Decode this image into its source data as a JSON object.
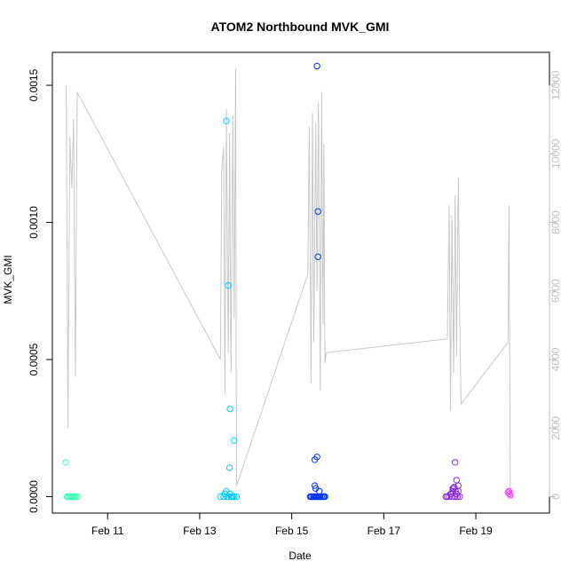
{
  "chart_data": {
    "type": "scatter",
    "title": "ATOM2 Northbound MVK_GMI",
    "xlabel": "Date",
    "ylabel": "MVK_GMI",
    "xlim": [
      9.8,
      20.6
    ],
    "ylim": [
      -6e-05,
      0.00162
    ],
    "y2lim": [
      -480,
      12960
    ],
    "x_ticks": [
      11,
      13,
      15,
      17,
      19
    ],
    "x_tick_labels": [
      "Feb 11",
      "Feb 13",
      "Feb 15",
      "Feb 17",
      "Feb 19"
    ],
    "y_ticks": [
      0,
      0.0005,
      0.001,
      0.0015
    ],
    "y_tick_labels": [
      "0.0000",
      "0.0005",
      "0.0010",
      "0.0015"
    ],
    "y2_ticks": [
      0,
      2000,
      4000,
      6000,
      8000,
      10000,
      12000
    ],
    "y2_tick_labels": [
      "0",
      "2000",
      "4000",
      "6000",
      "8000",
      "10000",
      "12000"
    ],
    "grid": false,
    "legend": "none",
    "point_series": [
      {
        "color": "#33ffb0",
        "x": [
          10.12,
          10.15,
          10.18,
          10.21,
          10.24,
          10.27,
          10.3,
          10.09,
          10.34
        ],
        "y": [
          0,
          0,
          0,
          0,
          0,
          0,
          0,
          0.000125,
          0
        ]
      },
      {
        "color": "#00ccff",
        "x": [
          13.45,
          13.52,
          13.55,
          13.58,
          13.6,
          13.63,
          13.66,
          13.68,
          13.7,
          13.72,
          13.75,
          13.8,
          13.58,
          13.62,
          13.66,
          13.65,
          13.75,
          13.55
        ],
        "y": [
          0,
          0,
          1e-05,
          2e-05,
          0,
          0,
          1e-05,
          0,
          0,
          0,
          0,
          0,
          0.00137,
          0.00077,
          0.00032,
          0.000105,
          0.000205,
          1e-05
        ]
      },
      {
        "color": "#0033ff",
        "x": [
          15.4,
          15.42,
          15.45,
          15.48,
          15.5,
          15.52,
          15.55,
          15.58,
          15.6,
          15.62,
          15.65,
          15.68,
          15.7,
          15.72,
          15.55,
          15.57,
          15.57,
          15.5,
          15.55,
          15.5,
          15.52,
          15.6
        ],
        "y": [
          0,
          0,
          0,
          0,
          0,
          0,
          0,
          0,
          0,
          0,
          0,
          0,
          0,
          0,
          0.00157,
          0.00104,
          0.000875,
          0.000135,
          0.000145,
          4e-05,
          3e-05,
          2e-05
        ]
      },
      {
        "color": "#8a2be2",
        "x": [
          18.35,
          18.38,
          18.42,
          18.45,
          18.48,
          18.5,
          18.52,
          18.55,
          18.58,
          18.6,
          18.62,
          18.65,
          18.55,
          18.5,
          18.58,
          18.62,
          18.47,
          18.53,
          18.56
        ],
        "y": [
          0,
          0,
          0,
          1e-05,
          0,
          2e-05,
          3e-05,
          0,
          1e-05,
          0,
          2e-05,
          0,
          0.000125,
          3e-05,
          6e-05,
          4e-05,
          1e-05,
          3.5e-05,
          2e-05
        ]
      },
      {
        "color": "#ff33ff",
        "x": [
          19.7,
          19.73,
          19.72,
          19.75
        ],
        "y": [
          1.5e-05,
          1e-05,
          2e-05,
          5e-06
        ]
      }
    ],
    "secondary_line": {
      "color": "#c8c8c8",
      "x": [
        10.1,
        10.14,
        10.18,
        10.22,
        10.26,
        10.3,
        10.34,
        13.45,
        13.48,
        13.52,
        13.55,
        13.58,
        13.62,
        13.65,
        13.68,
        13.72,
        13.75,
        13.78,
        13.8,
        15.35,
        15.38,
        15.42,
        15.45,
        15.48,
        15.52,
        15.55,
        15.58,
        15.62,
        15.65,
        15.68,
        15.7,
        15.72,
        15.75,
        18.38,
        18.42,
        18.45,
        18.48,
        18.52,
        18.55,
        18.58,
        18.62,
        18.65,
        18.68,
        19.7,
        19.72,
        19.75
      ],
      "y": [
        12000,
        2000,
        10500,
        9000,
        11000,
        3500,
        11800,
        4000,
        9500,
        10200,
        3000,
        11300,
        4200,
        10600,
        3600,
        11100,
        5200,
        12500,
        300,
        6500,
        10800,
        3300,
        11200,
        4500,
        10900,
        6000,
        11500,
        3100,
        11800,
        5000,
        10300,
        3900,
        4200,
        4600,
        8500,
        2500,
        8200,
        3600,
        8800,
        4100,
        9300,
        5200,
        2700,
        4500,
        8500,
        0
      ]
    }
  }
}
